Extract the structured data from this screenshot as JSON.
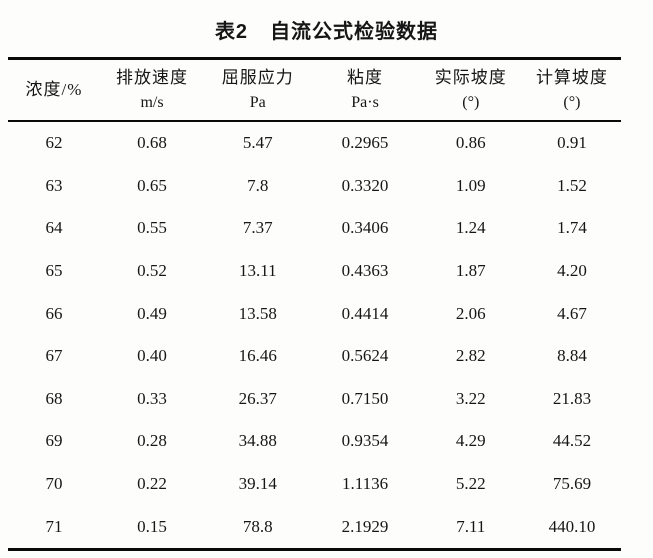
{
  "page": {
    "background_color": "#fdfdfb",
    "text_color": "#161616",
    "rule_color": "#0a0a0a"
  },
  "title": {
    "label": "表2",
    "text": "自流公式检验数据"
  },
  "table": {
    "columns": [
      {
        "name": "浓度/%",
        "unit": ""
      },
      {
        "name": "排放速度",
        "unit": "m/s"
      },
      {
        "name": "屈服应力",
        "unit": "Pa"
      },
      {
        "name": "粘度",
        "unit": "Pa·s"
      },
      {
        "name": "实际坡度",
        "unit": "(°)"
      },
      {
        "name": "计算坡度",
        "unit": "(°)"
      }
    ],
    "rows": [
      [
        "62",
        "0.68",
        "5.47",
        "0.2965",
        "0.86",
        "0.91"
      ],
      [
        "63",
        "0.65",
        "7.8",
        "0.3320",
        "1.09",
        "1.52"
      ],
      [
        "64",
        "0.55",
        "7.37",
        "0.3406",
        "1.24",
        "1.74"
      ],
      [
        "65",
        "0.52",
        "13.11",
        "0.4363",
        "1.87",
        "4.20"
      ],
      [
        "66",
        "0.49",
        "13.58",
        "0.4414",
        "2.06",
        "4.67"
      ],
      [
        "67",
        "0.40",
        "16.46",
        "0.5624",
        "2.82",
        "8.84"
      ],
      [
        "68",
        "0.33",
        "26.37",
        "0.7150",
        "3.22",
        "21.83"
      ],
      [
        "69",
        "0.28",
        "34.88",
        "0.9354",
        "4.29",
        "44.52"
      ],
      [
        "70",
        "0.22",
        "39.14",
        "1.1136",
        "5.22",
        "75.69"
      ],
      [
        "71",
        "0.15",
        "78.8",
        "2.1929",
        "7.11",
        "440.10"
      ]
    ]
  }
}
